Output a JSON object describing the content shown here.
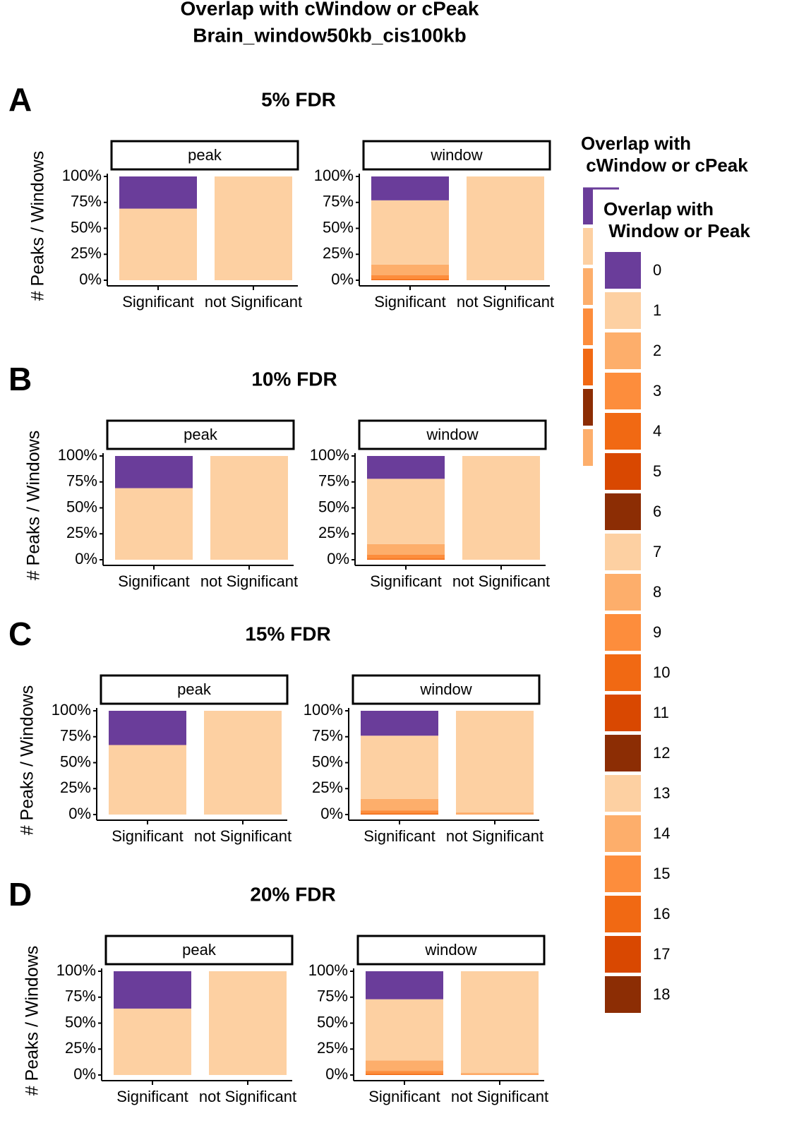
{
  "title": "Overlap with cWindow or cPeak",
  "subtitle": "Brain_window50kb_cis100kb",
  "chart_data": [
    {
      "type": "bar",
      "stacked": true,
      "panel": "A",
      "title": "5% FDR",
      "ylabel": "# Peaks / Windows",
      "ylim": [
        0,
        100
      ],
      "yticks": [
        {
          "value": 0,
          "label": "0%"
        },
        {
          "value": 25,
          "label": "25%"
        },
        {
          "value": 50,
          "label": "50%"
        },
        {
          "value": 75,
          "label": "75%"
        },
        {
          "value": 100,
          "label": "100%"
        }
      ],
      "facets": [
        {
          "name": "peak",
          "categories": [
            "Significant",
            "not Significant"
          ],
          "series": [
            {
              "name": "1",
              "values": [
                69,
                100
              ]
            },
            {
              "name": "0",
              "values": [
                31,
                0
              ]
            }
          ]
        },
        {
          "name": "window",
          "categories": [
            "Significant",
            "not Significant"
          ],
          "series": [
            {
              "name": "4",
              "values": [
                1,
                0
              ]
            },
            {
              "name": "3",
              "values": [
                4,
                0
              ]
            },
            {
              "name": "2",
              "values": [
                10,
                0
              ]
            },
            {
              "name": "1",
              "values": [
                62,
                100
              ]
            },
            {
              "name": "0",
              "values": [
                23,
                0
              ]
            }
          ]
        }
      ]
    },
    {
      "type": "bar",
      "stacked": true,
      "panel": "B",
      "title": "10% FDR",
      "ylabel": "# Peaks / Windows",
      "ylim": [
        0,
        100
      ],
      "yticks": [
        {
          "value": 0,
          "label": "0%"
        },
        {
          "value": 25,
          "label": "25%"
        },
        {
          "value": 50,
          "label": "50%"
        },
        {
          "value": 75,
          "label": "75%"
        },
        {
          "value": 100,
          "label": "100%"
        }
      ],
      "facets": [
        {
          "name": "peak",
          "categories": [
            "Significant",
            "not Significant"
          ],
          "series": [
            {
              "name": "1",
              "values": [
                69,
                100
              ]
            },
            {
              "name": "0",
              "values": [
                31,
                0
              ]
            }
          ]
        },
        {
          "name": "window",
          "categories": [
            "Significant",
            "not Significant"
          ],
          "series": [
            {
              "name": "4",
              "values": [
                1,
                0
              ]
            },
            {
              "name": "3",
              "values": [
                4,
                0
              ]
            },
            {
              "name": "2",
              "values": [
                10,
                0
              ]
            },
            {
              "name": "1",
              "values": [
                63,
                100
              ]
            },
            {
              "name": "0",
              "values": [
                22,
                0
              ]
            }
          ]
        }
      ]
    },
    {
      "type": "bar",
      "stacked": true,
      "panel": "C",
      "title": "15% FDR",
      "ylabel": "# Peaks / Windows",
      "ylim": [
        0,
        100
      ],
      "yticks": [
        {
          "value": 0,
          "label": "0%"
        },
        {
          "value": 25,
          "label": "25%"
        },
        {
          "value": 50,
          "label": "50%"
        },
        {
          "value": 75,
          "label": "75%"
        },
        {
          "value": 100,
          "label": "100%"
        }
      ],
      "facets": [
        {
          "name": "peak",
          "categories": [
            "Significant",
            "not Significant"
          ],
          "series": [
            {
              "name": "1",
              "values": [
                67,
                100
              ]
            },
            {
              "name": "0",
              "values": [
                33,
                0
              ]
            }
          ]
        },
        {
          "name": "window",
          "categories": [
            "Significant",
            "not Significant"
          ],
          "series": [
            {
              "name": "4",
              "values": [
                1,
                0
              ]
            },
            {
              "name": "3",
              "values": [
                3,
                0.5
              ]
            },
            {
              "name": "2",
              "values": [
                11,
                1.5
              ]
            },
            {
              "name": "1",
              "values": [
                61,
                98
              ]
            },
            {
              "name": "0",
              "values": [
                24,
                0
              ]
            }
          ]
        }
      ]
    },
    {
      "type": "bar",
      "stacked": true,
      "panel": "D",
      "title": "20% FDR",
      "ylabel": "# Peaks / Windows",
      "ylim": [
        0,
        100
      ],
      "yticks": [
        {
          "value": 0,
          "label": "0%"
        },
        {
          "value": 25,
          "label": "25%"
        },
        {
          "value": 50,
          "label": "50%"
        },
        {
          "value": 75,
          "label": "75%"
        },
        {
          "value": 100,
          "label": "100%"
        }
      ],
      "facets": [
        {
          "name": "peak",
          "categories": [
            "Significant",
            "not Significant"
          ],
          "series": [
            {
              "name": "1",
              "values": [
                64,
                100
              ]
            },
            {
              "name": "0",
              "values": [
                36,
                0
              ]
            }
          ]
        },
        {
          "name": "window",
          "categories": [
            "Significant",
            "not Significant"
          ],
          "series": [
            {
              "name": "4",
              "values": [
                1,
                0
              ]
            },
            {
              "name": "3",
              "values": [
                3,
                0.5
              ]
            },
            {
              "name": "2",
              "values": [
                10,
                1.5
              ]
            },
            {
              "name": "1",
              "values": [
                59,
                98
              ]
            },
            {
              "name": "0",
              "values": [
                27,
                0
              ]
            }
          ]
        }
      ]
    }
  ],
  "legends": [
    {
      "title": [
        "Overlap with",
        " cWindow or cPeak"
      ],
      "colors": [
        "#6a3d9a",
        "#fdd0a2",
        "#fdae6b",
        "#fd8d3c",
        "#f16913",
        "#8c2d04",
        "#fdae6b"
      ]
    },
    {
      "title": [
        "Overlap with",
        " Window or Peak"
      ],
      "items": [
        {
          "label": "0",
          "color": "#6a3d9a"
        },
        {
          "label": "1",
          "color": "#fdd0a2"
        },
        {
          "label": "2",
          "color": "#fdae6b"
        },
        {
          "label": "3",
          "color": "#fd8d3c"
        },
        {
          "label": "4",
          "color": "#f16913"
        },
        {
          "label": "5",
          "color": "#d94801"
        },
        {
          "label": "6",
          "color": "#8c2d04"
        },
        {
          "label": "7",
          "color": "#fdd0a2"
        },
        {
          "label": "8",
          "color": "#fdae6b"
        },
        {
          "label": "9",
          "color": "#fd8d3c"
        },
        {
          "label": "10",
          "color": "#f16913"
        },
        {
          "label": "11",
          "color": "#d94801"
        },
        {
          "label": "12",
          "color": "#8c2d04"
        },
        {
          "label": "13",
          "color": "#fdd0a2"
        },
        {
          "label": "14",
          "color": "#fdae6b"
        },
        {
          "label": "15",
          "color": "#fd8d3c"
        },
        {
          "label": "16",
          "color": "#f16913"
        },
        {
          "label": "17",
          "color": "#d94801"
        },
        {
          "label": "18",
          "color": "#8c2d04"
        }
      ]
    }
  ]
}
